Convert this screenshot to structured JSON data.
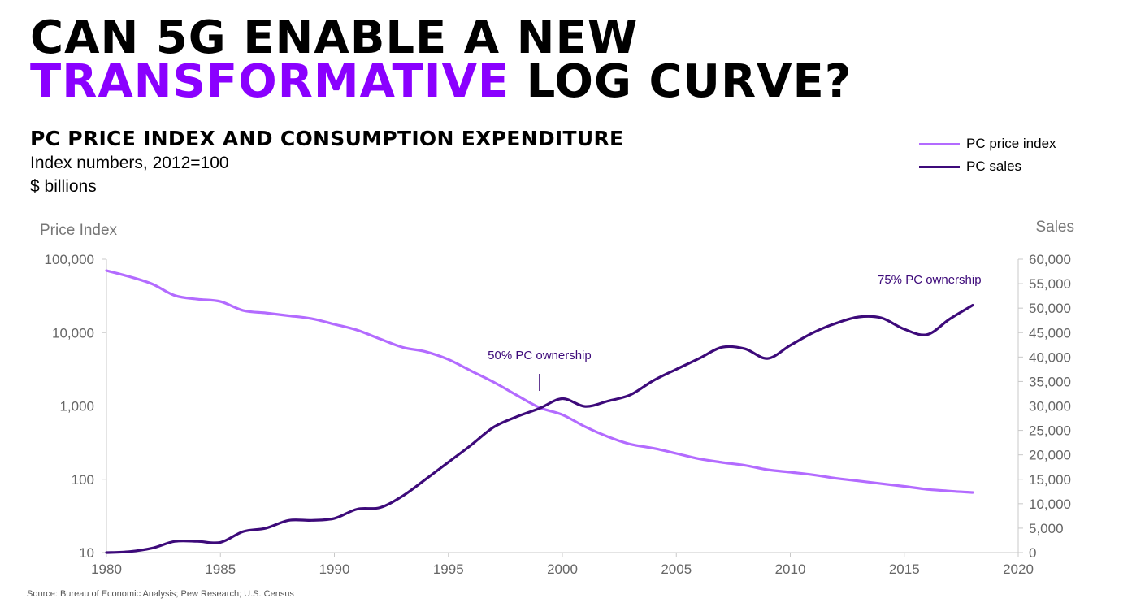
{
  "headline": {
    "line1": "CAN 5G ENABLE A NEW",
    "line2_accent": "TRANSFORMATIVE",
    "line2_rest": " LOG CURVE?"
  },
  "subtitle": "PC PRICE INDEX AND CONSUMPTION EXPENDITURE",
  "units_line1": "Index numbers, 2012=100",
  "units_line2": "$ billions",
  "source": "Source: Bureau of Economic Analysis; Pew Research; U.S. Census",
  "colors": {
    "accent": "#8a00ff",
    "price_line": "#b36bff",
    "sales_line": "#3d0a7a"
  },
  "chart_data": {
    "type": "line",
    "x_axis": {
      "range": [
        1980,
        2020
      ],
      "ticks": [
        "1980",
        "1985",
        "1990",
        "1995",
        "2000",
        "2005",
        "2010",
        "2015",
        "2020"
      ]
    },
    "y_left": {
      "title": "Price Index",
      "scale": "log",
      "range": [
        10,
        100000
      ],
      "ticks": [
        10,
        100,
        1000,
        10000,
        100000
      ],
      "tick_labels": [
        "10",
        "100",
        "1,000",
        "10,000",
        "100,000"
      ]
    },
    "y_right": {
      "title": "Sales",
      "scale": "linear",
      "range": [
        0,
        60000
      ],
      "ticks": [
        0,
        5000,
        10000,
        15000,
        20000,
        25000,
        30000,
        35000,
        40000,
        45000,
        50000,
        55000,
        60000
      ],
      "tick_labels": [
        "0",
        "5,000",
        "10,000",
        "15,000",
        "20,000",
        "25,000",
        "30,000",
        "35,000",
        "40,000",
        "45,000",
        "50,000",
        "55,000",
        "60,000"
      ]
    },
    "series": [
      {
        "name": "PC price index",
        "axis": "left",
        "color": "#b36bff",
        "x": [
          1980,
          1981,
          1982,
          1983,
          1984,
          1985,
          1986,
          1987,
          1988,
          1989,
          1990,
          1991,
          1992,
          1993,
          1994,
          1995,
          1996,
          1997,
          1998,
          1999,
          2000,
          2001,
          2002,
          2003,
          2004,
          2005,
          2006,
          2007,
          2008,
          2009,
          2010,
          2011,
          2012,
          2013,
          2014,
          2015,
          2016,
          2017,
          2018
        ],
        "values": [
          70000,
          58000,
          46000,
          32000,
          28500,
          26500,
          20000,
          18500,
          17000,
          15500,
          13000,
          10800,
          8200,
          6300,
          5500,
          4300,
          3000,
          2100,
          1400,
          950,
          760,
          520,
          380,
          300,
          265,
          225,
          190,
          170,
          155,
          135,
          125,
          115,
          103,
          95,
          87,
          80,
          73,
          69,
          66
        ]
      },
      {
        "name": "PC sales",
        "axis": "right",
        "color": "#3d0a7a",
        "x": [
          1980,
          1981,
          1982,
          1983,
          1984,
          1985,
          1986,
          1987,
          1988,
          1989,
          1990,
          1991,
          1992,
          1993,
          1994,
          1995,
          1996,
          1997,
          1998,
          1999,
          2000,
          2001,
          2002,
          2003,
          2004,
          2005,
          2006,
          2007,
          2008,
          2009,
          2010,
          2011,
          2012,
          2013,
          2014,
          2015,
          2016,
          2017,
          2018
        ],
        "values": [
          0,
          200,
          900,
          2300,
          2300,
          2100,
          4300,
          5000,
          6600,
          6600,
          7000,
          8900,
          9200,
          11600,
          15000,
          18500,
          22000,
          25700,
          27800,
          29500,
          31500,
          29900,
          31000,
          32300,
          35200,
          37500,
          39700,
          42000,
          41700,
          39700,
          42400,
          45000,
          46900,
          48200,
          48000,
          45700,
          44600,
          47800,
          50600
        ]
      }
    ],
    "annotations": [
      {
        "text": "50% PC ownership",
        "x": 1999,
        "series": "PC sales"
      },
      {
        "text": "75% PC ownership",
        "x": 2016
      }
    ]
  }
}
